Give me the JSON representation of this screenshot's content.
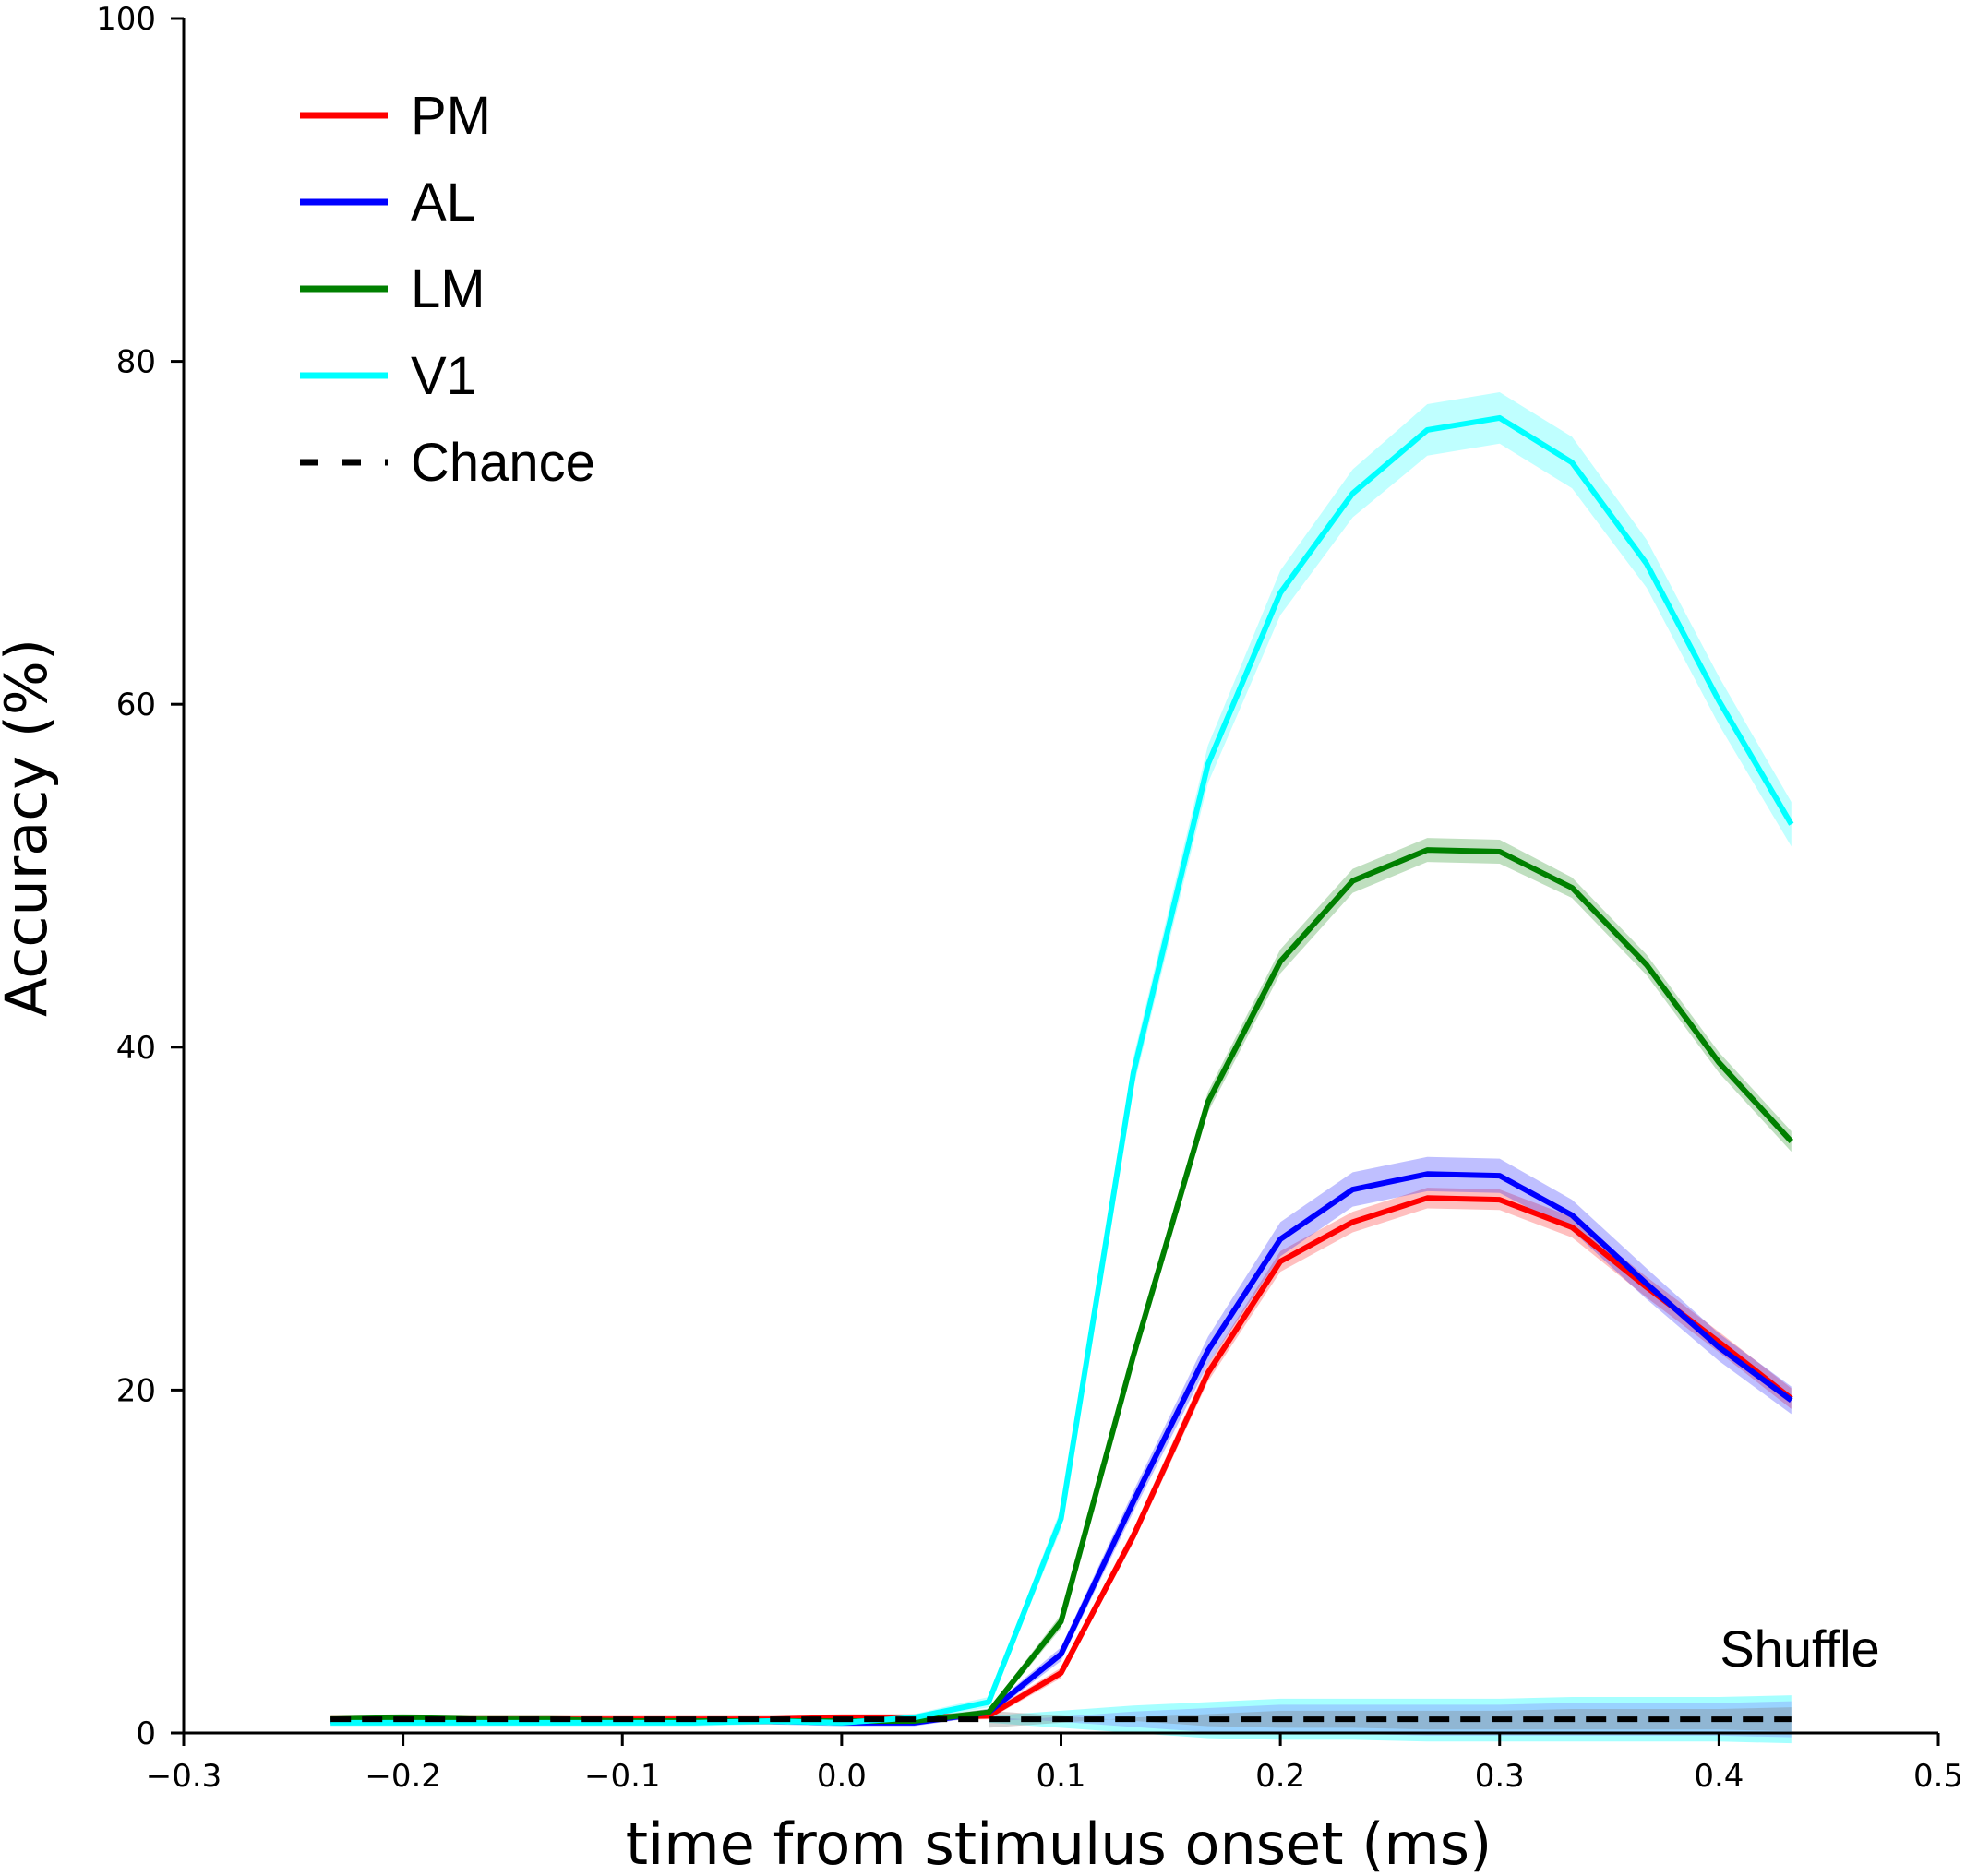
{
  "chart_data": {
    "type": "line",
    "xlabel": "time from stimulus onset (ms)",
    "ylabel": "Accuracy (%)",
    "xlim": [
      -0.3,
      0.5
    ],
    "ylim": [
      0,
      100
    ],
    "xticks": [
      -0.3,
      -0.2,
      -0.1,
      0.0,
      0.1,
      0.2,
      0.3,
      0.4,
      0.5
    ],
    "xtick_labels": [
      "−0.3",
      "−0.2",
      "−0.1",
      "0.0",
      "0.1",
      "0.2",
      "0.3",
      "0.4",
      "0.5"
    ],
    "yticks": [
      0,
      20,
      40,
      60,
      80,
      100
    ],
    "ytick_labels": [
      "0",
      "20",
      "40",
      "60",
      "80",
      "100"
    ],
    "grid": false,
    "legend_position": "top-left",
    "annotation": "Shuffle",
    "x": [
      -0.233,
      -0.2,
      -0.167,
      -0.133,
      -0.1,
      -0.067,
      -0.033,
      0.0,
      0.033,
      0.067,
      0.1,
      0.133,
      0.167,
      0.2,
      0.233,
      0.267,
      0.3,
      0.333,
      0.367,
      0.4,
      0.433
    ],
    "series": [
      {
        "name": "PM",
        "color": "#ff0000",
        "values": [
          0.8,
          0.8,
          0.8,
          0.8,
          0.8,
          0.8,
          0.8,
          0.9,
          0.9,
          1.0,
          3.5,
          11.5,
          21.0,
          27.5,
          29.8,
          31.2,
          31.1,
          29.5,
          26.0,
          22.8,
          19.5
        ],
        "err": [
          0.2,
          0.2,
          0.2,
          0.2,
          0.2,
          0.2,
          0.2,
          0.2,
          0.2,
          0.2,
          0.3,
          0.4,
          0.5,
          0.6,
          0.6,
          0.6,
          0.6,
          0.6,
          0.6,
          0.6,
          0.6
        ]
      },
      {
        "name": "AL",
        "color": "#0000ff",
        "values": [
          0.7,
          0.7,
          0.7,
          0.7,
          0.7,
          0.7,
          0.7,
          0.6,
          0.6,
          1.2,
          4.6,
          13.5,
          22.3,
          28.8,
          31.7,
          32.6,
          32.5,
          30.2,
          26.2,
          22.5,
          19.4
        ],
        "err": [
          0.2,
          0.2,
          0.2,
          0.2,
          0.2,
          0.2,
          0.2,
          0.2,
          0.2,
          0.2,
          0.4,
          0.6,
          0.8,
          1.0,
          1.0,
          1.0,
          1.0,
          0.9,
          0.9,
          0.8,
          0.8
        ]
      },
      {
        "name": "LM",
        "color": "#008000",
        "values": [
          0.8,
          0.9,
          0.8,
          0.8,
          0.7,
          0.7,
          0.7,
          0.7,
          0.7,
          1.2,
          6.5,
          22.0,
          36.8,
          45.0,
          49.7,
          51.5,
          51.4,
          49.3,
          44.8,
          39.1,
          34.5
        ],
        "err": [
          0.2,
          0.2,
          0.2,
          0.2,
          0.2,
          0.2,
          0.2,
          0.2,
          0.2,
          0.2,
          0.4,
          0.5,
          0.6,
          0.7,
          0.7,
          0.7,
          0.7,
          0.6,
          0.6,
          0.6,
          0.6
        ]
      },
      {
        "name": "V1",
        "color": "#00ffff",
        "values": [
          0.6,
          0.6,
          0.6,
          0.6,
          0.6,
          0.6,
          0.7,
          0.6,
          0.9,
          1.8,
          12.5,
          38.5,
          56.5,
          66.5,
          72.3,
          76.0,
          76.7,
          74.1,
          68.2,
          60.2,
          53.0
        ],
        "err": [
          0.2,
          0.2,
          0.2,
          0.2,
          0.2,
          0.2,
          0.2,
          0.2,
          0.2,
          0.3,
          0.6,
          0.9,
          1.1,
          1.3,
          1.4,
          1.5,
          1.5,
          1.5,
          1.4,
          1.4,
          1.3
        ]
      },
      {
        "name": "Chance",
        "color": "#000000",
        "style": "dashed",
        "values": [
          0.8,
          0.8,
          0.8,
          0.8,
          0.8,
          0.8,
          0.8,
          0.8,
          0.8,
          0.8,
          0.8,
          0.8,
          0.8,
          0.8,
          0.8,
          0.8,
          0.8,
          0.8,
          0.8,
          0.8,
          0.8
        ]
      }
    ],
    "shuffle_band": {
      "colors": [
        "#00ffff",
        "#8080ff",
        "#808080"
      ],
      "x": [
        0.067,
        0.1,
        0.133,
        0.167,
        0.2,
        0.233,
        0.267,
        0.3,
        0.333,
        0.367,
        0.4,
        0.433
      ],
      "lower": [
        0.6,
        0.3,
        0.0,
        -0.3,
        -0.4,
        -0.4,
        -0.5,
        -0.5,
        -0.5,
        -0.5,
        -0.5,
        -0.6
      ],
      "upper": [
        1.0,
        1.3,
        1.6,
        1.8,
        2.0,
        2.0,
        2.0,
        2.0,
        2.1,
        2.1,
        2.1,
        2.2
      ]
    }
  }
}
